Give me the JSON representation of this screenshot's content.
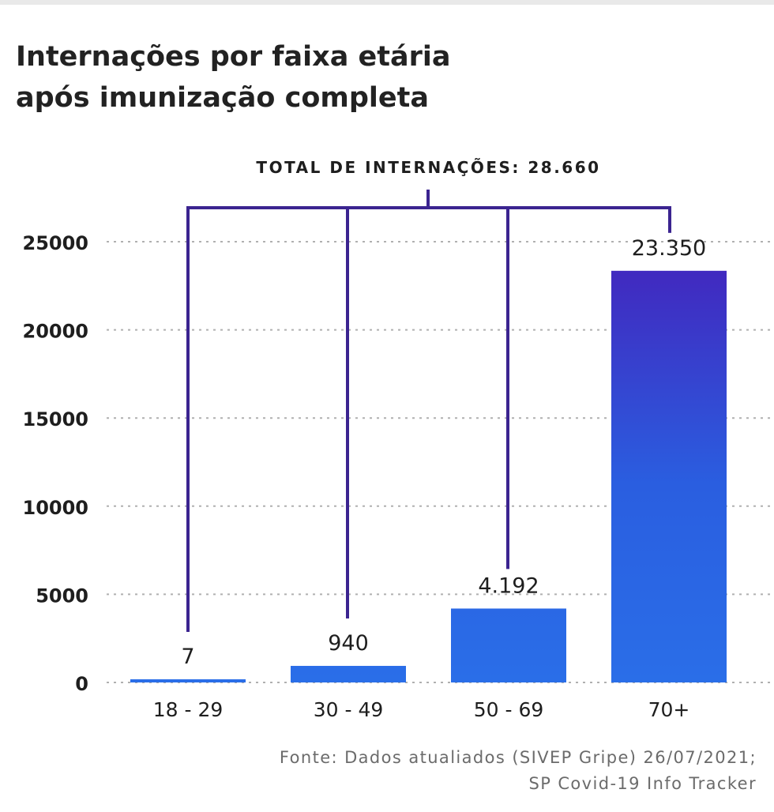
{
  "title": {
    "line1": "Internações por faixa etária",
    "line2": "após imunização completa"
  },
  "total_label": "TOTAL DE INTERNAÇÕES: 28.660",
  "source": {
    "line1": "Fonte: Dados atualiados (SIVEP Gripe) 26/07/2021;",
    "line2": "SP Covid-19 Info Tracker"
  },
  "colors": {
    "bar_light": "#2a6ee8",
    "bar_dark": "#4422bb",
    "bracket": "#3b2490",
    "grid": "#b0b0b0",
    "text": "#1e1e1e"
  },
  "chart_data": {
    "type": "bar",
    "categories": [
      "18 - 29",
      "30 - 49",
      "50 - 69",
      "70+"
    ],
    "values": [
      7,
      940,
      4192,
      23350
    ],
    "value_labels": [
      "7",
      "940",
      "4.192",
      "23.350"
    ],
    "y_ticks": [
      0,
      5000,
      10000,
      15000,
      20000,
      25000
    ],
    "ylim": [
      0,
      25000
    ],
    "total": 28660,
    "grid": true,
    "legend": "none"
  }
}
